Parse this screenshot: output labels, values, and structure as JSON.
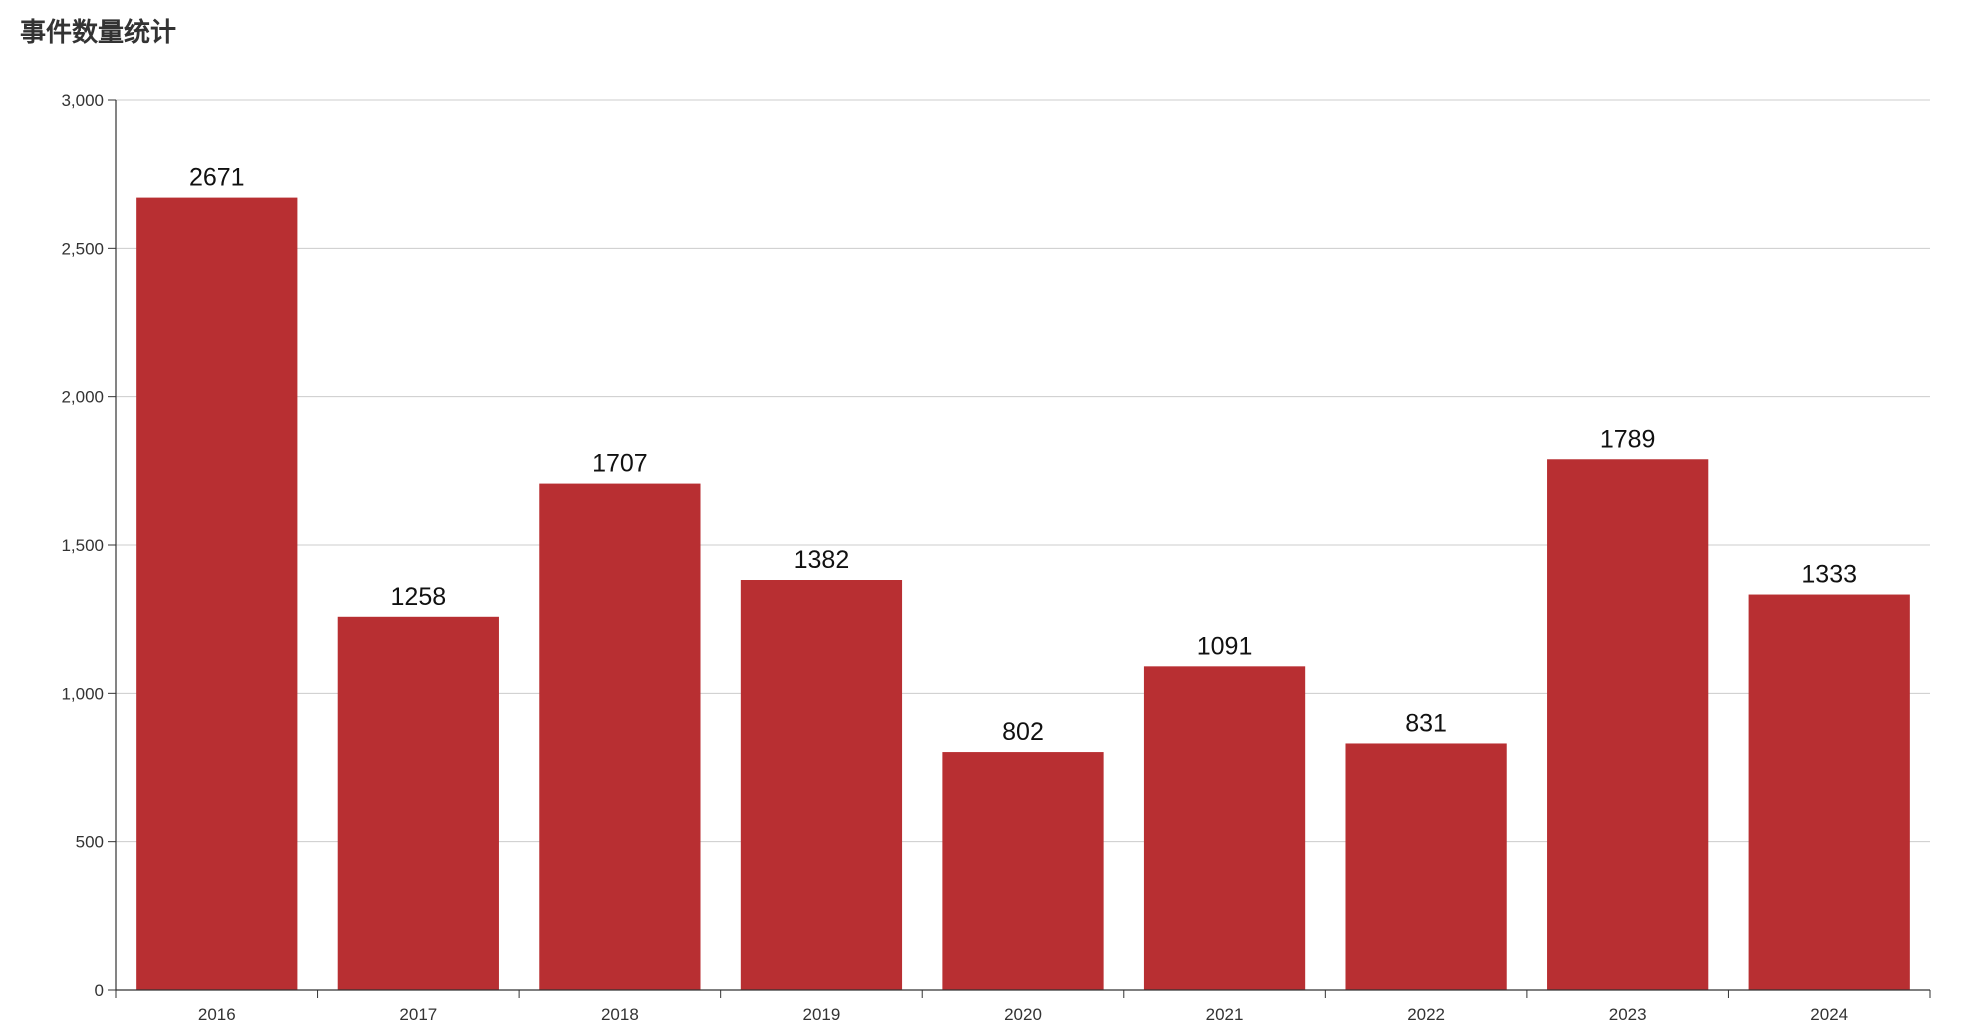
{
  "title": "事件数量统计",
  "chart_data": {
    "type": "bar",
    "title": "事件数量统计",
    "xlabel": "",
    "ylabel": "",
    "categories": [
      "2016",
      "2017",
      "2018",
      "2019",
      "2020",
      "2021",
      "2022",
      "2023",
      "2024"
    ],
    "values": [
      2671,
      1258,
      1707,
      1382,
      802,
      1091,
      831,
      1789,
      1333
    ],
    "ylim": [
      0,
      3000
    ],
    "yticks": [
      0,
      500,
      1000,
      1500,
      2000,
      2500,
      3000
    ],
    "ytick_labels": [
      "0",
      "500",
      "1,000",
      "1,500",
      "2,000",
      "2,500",
      "3,000"
    ],
    "grid": true,
    "legend": "none",
    "colors": {
      "bar": "#b82f32",
      "grid": "#cccccc",
      "axis": "#333333"
    }
  }
}
